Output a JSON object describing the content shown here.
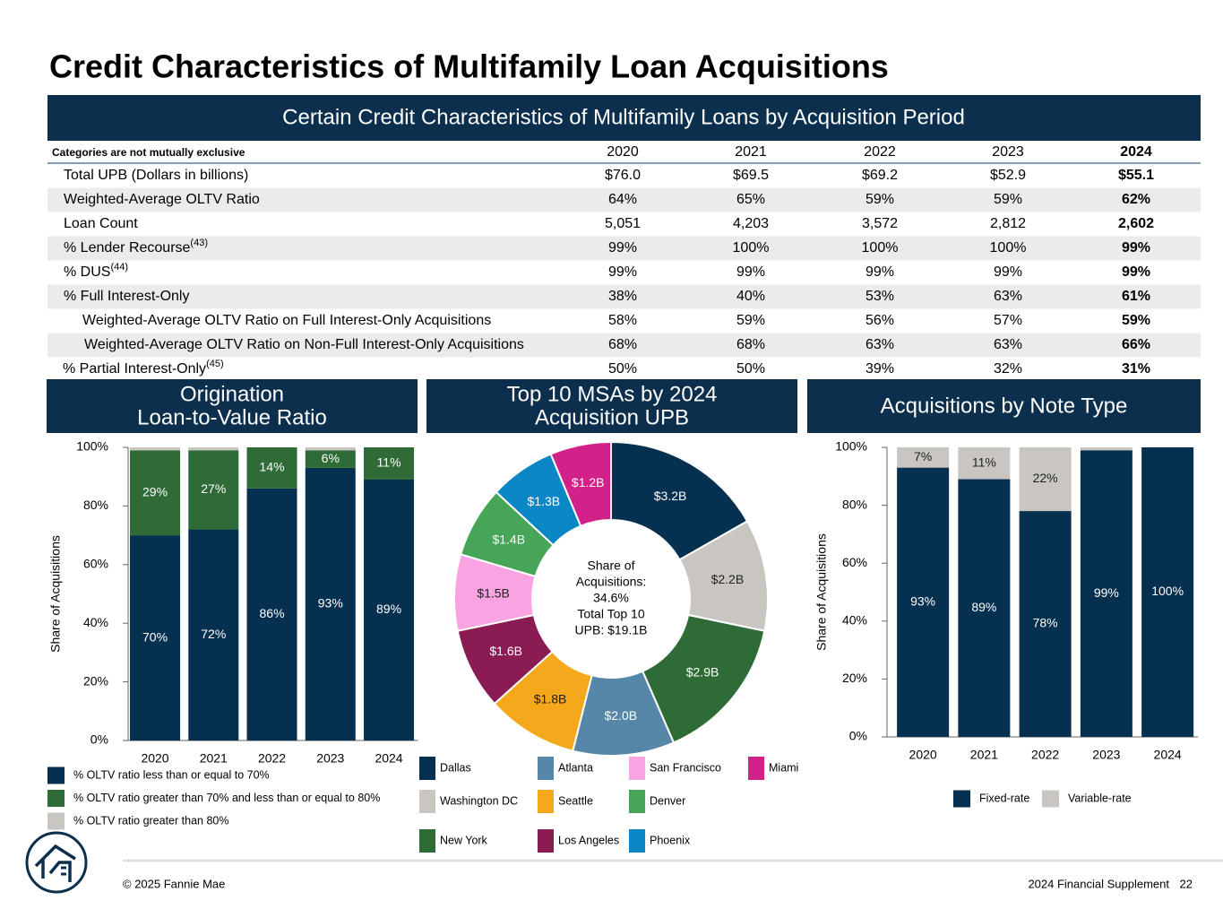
{
  "title": "Credit Characteristics of Multifamily Loan Acquisitions",
  "table": {
    "title": "Certain Credit Characteristics of Multifamily Loans by Acquisition Period",
    "note": "Categories are not mutually exclusive",
    "columns": [
      "2020",
      "2021",
      "2022",
      "2023",
      "2024"
    ],
    "rows": [
      {
        "label": "Total UPB (Dollars in billions)",
        "cells": [
          "$76.0",
          "$69.5",
          "$69.2",
          "$52.9",
          "$55.1"
        ]
      },
      {
        "label": "Weighted-Average OLTV Ratio",
        "cells": [
          "64%",
          "65%",
          "59%",
          "59%",
          "62%"
        ]
      },
      {
        "label": "Loan Count",
        "cells": [
          "5,051",
          "4,203",
          "3,572",
          "2,812",
          "2,602"
        ]
      },
      {
        "label": "% Lender Recourse",
        "footnote": "(43)",
        "cells": [
          "99%",
          "100%",
          "100%",
          "100%",
          "99%"
        ]
      },
      {
        "label": "% DUS",
        "footnote": "(44)",
        "cells": [
          "99%",
          "99%",
          "99%",
          "99%",
          "99%"
        ]
      },
      {
        "label": "% Full Interest-Only",
        "cells": [
          "38%",
          "40%",
          "53%",
          "63%",
          "61%"
        ]
      },
      {
        "label": "Weighted-Average OLTV Ratio on Full Interest-Only Acquisitions",
        "cells": [
          "58%",
          "59%",
          "56%",
          "57%",
          "59%"
        ]
      },
      {
        "label": "Weighted-Average OLTV Ratio on Non-Full Interest-Only Acquisitions",
        "cells": [
          "68%",
          "68%",
          "63%",
          "63%",
          "66%"
        ]
      },
      {
        "label": "% Partial Interest-Only",
        "footnote": "(45)",
        "cells": [
          "50%",
          "50%",
          "39%",
          "32%",
          "31%"
        ]
      }
    ]
  },
  "chart_data": [
    {
      "type": "bar",
      "stacked": true,
      "title": [
        "Origination",
        "Loan-to-Value Ratio"
      ],
      "ylabel": "Share of Acquisitions",
      "categories": [
        "2020",
        "2021",
        "2022",
        "2023",
        "2024"
      ],
      "series": [
        {
          "name": "% OLTV ratio less than or equal to 70%",
          "color": "#06304f",
          "values": [
            70,
            72,
            86,
            93,
            89
          ],
          "value_labels": [
            "70%",
            "72%",
            "86%",
            "93%",
            "89%"
          ]
        },
        {
          "name": "% OLTV ratio greater than 70% and less than or equal to 80%",
          "color": "#2e6b37",
          "values": [
            29,
            27,
            14,
            6,
            11
          ],
          "value_labels": [
            "29%",
            "27%",
            "14%",
            "6%",
            "11%"
          ]
        },
        {
          "name": "% OLTV ratio greater than 80%",
          "color": "#c9c6c1",
          "values": [
            1,
            1,
            0,
            1,
            0
          ]
        }
      ],
      "ylim": [
        0,
        100
      ],
      "yticks": [
        {
          "value": 0,
          "label": "0%"
        },
        {
          "value": 20,
          "label": "20%"
        },
        {
          "value": 40,
          "label": "40%"
        },
        {
          "value": 60,
          "label": "60%"
        },
        {
          "value": 80,
          "label": "80%"
        },
        {
          "value": 100,
          "label": "100%"
        }
      ],
      "legend": "bottom-left"
    },
    {
      "type": "pie",
      "donut": true,
      "title": [
        "Top 10 MSAs by 2024",
        "Acquisition UPB"
      ],
      "center_label": [
        "Share of",
        "Acquisitions:",
        "34.6%",
        "Total Top 10",
        "UPB: $19.1B"
      ],
      "categories": [
        "Dallas",
        "Washington DC",
        "New York",
        "Atlanta",
        "Seattle",
        "Los Angeles",
        "San Francisco",
        "Denver",
        "Phoenix",
        "Miami"
      ],
      "values": [
        3.2,
        2.2,
        2.9,
        2.0,
        1.8,
        1.6,
        1.5,
        1.4,
        1.3,
        1.2
      ],
      "value_labels": [
        "$3.2B",
        "$2.2B",
        "$2.9B",
        "$2.0B",
        "$1.8B",
        "$1.6B",
        "$1.5B",
        "$1.4B",
        "$1.3B",
        "$1.2B"
      ],
      "colors": [
        "#06304f",
        "#c9c6c1",
        "#2e6b37",
        "#5687a8",
        "#f5a81c",
        "#8a1c53",
        "#f9a3e3",
        "#46a556",
        "#0c87c5",
        "#d3218a"
      ],
      "legend": "bottom"
    },
    {
      "type": "bar",
      "stacked": true,
      "title": [
        "Acquisitions by Note Type"
      ],
      "ylabel": "Share of Acquisitions",
      "categories": [
        "2020",
        "2021",
        "2022",
        "2023",
        "2024"
      ],
      "series": [
        {
          "name": "Fixed-rate",
          "color": "#06304f",
          "values": [
            93,
            89,
            78,
            99,
            100
          ],
          "value_labels": [
            "93%",
            "89%",
            "78%",
            "99%",
            "100%"
          ]
        },
        {
          "name": "Variable-rate",
          "color": "#c9c6c1",
          "values": [
            7,
            11,
            22,
            1,
            0
          ],
          "value_labels": [
            "7%",
            "11%",
            "22%",
            null,
            null
          ]
        }
      ],
      "ylim": [
        0,
        100
      ],
      "yticks": [
        {
          "value": 0,
          "label": "0%"
        },
        {
          "value": 20,
          "label": "20%"
        },
        {
          "value": 40,
          "label": "40%"
        },
        {
          "value": 60,
          "label": "60%"
        },
        {
          "value": 80,
          "label": "80%"
        },
        {
          "value": 100,
          "label": "100%"
        }
      ],
      "legend": "bottom"
    }
  ],
  "footer": {
    "copyright": "© 2025 Fannie Mae",
    "document": "2024 Financial Supplement",
    "page": "22"
  }
}
